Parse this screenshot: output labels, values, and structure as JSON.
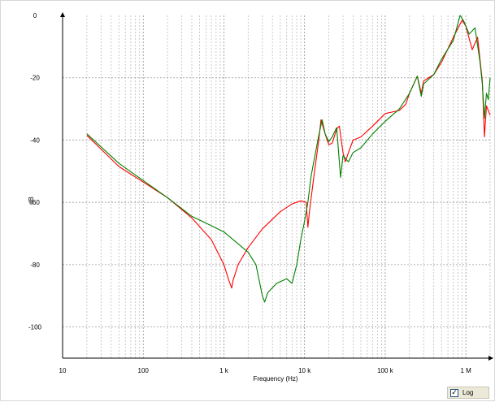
{
  "chart_data": {
    "type": "line",
    "title": "",
    "xlabel": "Frequency (Hz)",
    "ylabel": "dB",
    "xscale": "log",
    "xlim": [
      10,
      2000000
    ],
    "ylim": [
      -110,
      0
    ],
    "grid": true,
    "x_ticks": [
      {
        "value": 10,
        "label": "10"
      },
      {
        "value": 100,
        "label": "100"
      },
      {
        "value": 1000,
        "label": "1 k"
      },
      {
        "value": 10000,
        "label": "10 k"
      },
      {
        "value": 100000,
        "label": "100 k"
      },
      {
        "value": 1000000,
        "label": "1 M"
      }
    ],
    "y_ticks": [
      {
        "value": 0,
        "label": "0"
      },
      {
        "value": -20,
        "label": "-20"
      },
      {
        "value": -40,
        "label": "-40"
      },
      {
        "value": -60,
        "label": "-60"
      },
      {
        "value": -80,
        "label": "-80"
      },
      {
        "value": -100,
        "label": "-100"
      }
    ],
    "series": [
      {
        "color": "#ff0000",
        "points": [
          [
            20,
            -38.5
          ],
          [
            50,
            -48.5
          ],
          [
            100,
            -53.5
          ],
          [
            200,
            -58.5
          ],
          [
            400,
            -65
          ],
          [
            700,
            -72
          ],
          [
            1000,
            -80
          ],
          [
            1150,
            -85
          ],
          [
            1250,
            -87.5
          ],
          [
            1300,
            -85
          ],
          [
            1500,
            -80
          ],
          [
            2000,
            -74.5
          ],
          [
            3000,
            -68.5
          ],
          [
            5000,
            -63
          ],
          [
            7000,
            -60.5
          ],
          [
            9000,
            -59.5
          ],
          [
            10500,
            -60
          ],
          [
            11000,
            -68
          ],
          [
            11500,
            -63
          ],
          [
            13000,
            -52
          ],
          [
            15000,
            -40
          ],
          [
            16000,
            -33.5
          ],
          [
            18000,
            -38
          ],
          [
            20000,
            -41.5
          ],
          [
            22000,
            -41
          ],
          [
            25000,
            -36.5
          ],
          [
            27000,
            -35.5
          ],
          [
            30000,
            -44
          ],
          [
            32000,
            -47
          ],
          [
            35000,
            -44
          ],
          [
            40000,
            -40
          ],
          [
            50000,
            -39
          ],
          [
            70000,
            -35.5
          ],
          [
            100000,
            -31.5
          ],
          [
            150000,
            -30.5
          ],
          [
            180000,
            -28.5
          ],
          [
            200000,
            -25
          ],
          [
            250000,
            -19.5
          ],
          [
            280000,
            -25
          ],
          [
            300000,
            -21
          ],
          [
            400000,
            -19
          ],
          [
            500000,
            -15
          ],
          [
            700000,
            -7
          ],
          [
            900000,
            -1.5
          ],
          [
            1000000,
            -3.5
          ],
          [
            1200000,
            -11
          ],
          [
            1400000,
            -7
          ],
          [
            1600000,
            -21
          ],
          [
            1700000,
            -39
          ],
          [
            1800000,
            -29
          ],
          [
            2000000,
            -32
          ]
        ]
      },
      {
        "color": "#008000",
        "points": [
          [
            20,
            -38
          ],
          [
            50,
            -47.5
          ],
          [
            100,
            -53
          ],
          [
            200,
            -58.5
          ],
          [
            400,
            -64.5
          ],
          [
            700,
            -67.5
          ],
          [
            1000,
            -69.5
          ],
          [
            2000,
            -76
          ],
          [
            2500,
            -80
          ],
          [
            3000,
            -90
          ],
          [
            3200,
            -92
          ],
          [
            3500,
            -89
          ],
          [
            4500,
            -86
          ],
          [
            6000,
            -84.5
          ],
          [
            7000,
            -86
          ],
          [
            8000,
            -80
          ],
          [
            9000,
            -72
          ],
          [
            10000,
            -66
          ],
          [
            11000,
            -60
          ],
          [
            12000,
            -52
          ],
          [
            13000,
            -47
          ],
          [
            15000,
            -38.5
          ],
          [
            16500,
            -33.5
          ],
          [
            18000,
            -38
          ],
          [
            20000,
            -40.5
          ],
          [
            22000,
            -39
          ],
          [
            25000,
            -36
          ],
          [
            27000,
            -47
          ],
          [
            28000,
            -52
          ],
          [
            30000,
            -45
          ],
          [
            35000,
            -47
          ],
          [
            40000,
            -44
          ],
          [
            50000,
            -42.5
          ],
          [
            70000,
            -38
          ],
          [
            100000,
            -34
          ],
          [
            150000,
            -30
          ],
          [
            200000,
            -25
          ],
          [
            250000,
            -19.5
          ],
          [
            280000,
            -26
          ],
          [
            300000,
            -22
          ],
          [
            400000,
            -19
          ],
          [
            500000,
            -14
          ],
          [
            700000,
            -8
          ],
          [
            850000,
            0
          ],
          [
            950000,
            -2
          ],
          [
            1100000,
            -6
          ],
          [
            1300000,
            -4
          ],
          [
            1500000,
            -15
          ],
          [
            1600000,
            -22
          ],
          [
            1700000,
            -33
          ],
          [
            1800000,
            -25
          ],
          [
            1900000,
            -27
          ],
          [
            2000000,
            -20
          ]
        ]
      }
    ]
  },
  "controls": {
    "log_checkbox": {
      "label": "Log",
      "checked": true,
      "check_glyph": "✓"
    }
  }
}
